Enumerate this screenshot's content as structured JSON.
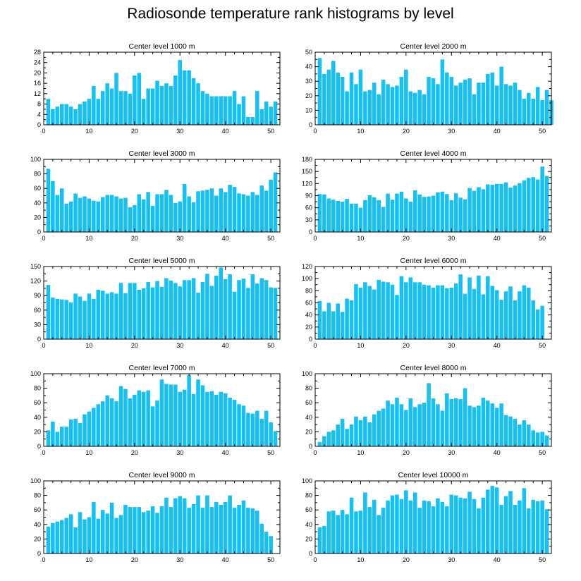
{
  "title": "Radiosonde temperature rank histograms by level",
  "colors": {
    "bar": "#16c0f3",
    "axis": "#000000"
  },
  "chart_data": [
    {
      "type": "bar",
      "title": "Center level 1000 m",
      "xlim": [
        0,
        52
      ],
      "ylim": [
        0,
        28
      ],
      "xticks": [
        0,
        10,
        20,
        30,
        40,
        50
      ],
      "yticks": [
        0,
        4,
        8,
        12,
        16,
        20,
        24,
        28
      ],
      "values": [
        10,
        6,
        7,
        8,
        8,
        7,
        6,
        8,
        9,
        10,
        15,
        10,
        13,
        16,
        14,
        20,
        13,
        13,
        12,
        19,
        20,
        10,
        14,
        14,
        17,
        15,
        16,
        15,
        19,
        25,
        21,
        21,
        18,
        16,
        13,
        12,
        11,
        11,
        11,
        11,
        11,
        13,
        8,
        11,
        3,
        3,
        13,
        6,
        9,
        7,
        9
      ]
    },
    {
      "type": "bar",
      "title": "Center level 2000 m",
      "xlim": [
        0,
        52
      ],
      "ylim": [
        0,
        50
      ],
      "xticks": [
        0,
        10,
        20,
        30,
        40,
        50
      ],
      "yticks": [
        0,
        10,
        20,
        30,
        40,
        50
      ],
      "values": [
        46,
        35,
        38,
        44,
        36,
        33,
        23,
        36,
        28,
        38,
        23,
        24,
        29,
        21,
        31,
        28,
        26,
        27,
        33,
        38,
        23,
        22,
        24,
        21,
        33,
        32,
        28,
        45,
        36,
        33,
        27,
        29,
        31,
        32,
        21,
        29,
        29,
        35,
        36,
        27,
        40,
        28,
        27,
        29,
        24,
        18,
        22,
        18,
        26,
        17,
        24,
        17
      ]
    },
    {
      "type": "bar",
      "title": "Center level 3000 m",
      "xlim": [
        0,
        52
      ],
      "ylim": [
        0,
        100
      ],
      "xticks": [
        0,
        10,
        20,
        30,
        40,
        50
      ],
      "yticks": [
        0,
        20,
        40,
        60,
        80,
        100
      ],
      "values": [
        87,
        70,
        51,
        60,
        39,
        42,
        53,
        47,
        49,
        46,
        43,
        42,
        48,
        51,
        51,
        49,
        46,
        47,
        34,
        37,
        52,
        45,
        55,
        36,
        52,
        52,
        58,
        51,
        40,
        42,
        66,
        49,
        41,
        56,
        57,
        58,
        60,
        50,
        60,
        55,
        65,
        62,
        53,
        52,
        50,
        55,
        51,
        64,
        57,
        72,
        82
      ]
    },
    {
      "type": "bar",
      "title": "Center level 4000 m",
      "xlim": [
        0,
        52
      ],
      "ylim": [
        0,
        180
      ],
      "xticks": [
        0,
        10,
        20,
        30,
        40,
        50
      ],
      "yticks": [
        0,
        30,
        60,
        90,
        120,
        150,
        180
      ],
      "values": [
        94,
        93,
        83,
        80,
        77,
        75,
        82,
        70,
        70,
        60,
        79,
        91,
        86,
        79,
        62,
        95,
        80,
        95,
        100,
        83,
        75,
        103,
        93,
        87,
        88,
        90,
        98,
        100,
        94,
        79,
        96,
        85,
        81,
        109,
        102,
        111,
        106,
        118,
        117,
        119,
        119,
        123,
        110,
        115,
        121,
        128,
        134,
        136,
        130,
        162,
        139
      ]
    },
    {
      "type": "bar",
      "title": "Center level 5000 m",
      "xlim": [
        0,
        52
      ],
      "ylim": [
        0,
        150
      ],
      "xticks": [
        0,
        10,
        20,
        30,
        40,
        50
      ],
      "yticks": [
        0,
        30,
        60,
        90,
        120,
        150
      ],
      "values": [
        112,
        86,
        83,
        82,
        81,
        76,
        94,
        88,
        79,
        94,
        83,
        102,
        100,
        94,
        97,
        94,
        116,
        95,
        116,
        116,
        102,
        105,
        118,
        107,
        120,
        108,
        126,
        121,
        116,
        109,
        122,
        122,
        126,
        96,
        118,
        135,
        110,
        131,
        148,
        124,
        134,
        98,
        122,
        125,
        106,
        134,
        115,
        126,
        122,
        107,
        106
      ]
    },
    {
      "type": "bar",
      "title": "Center level 6000 m",
      "xlim": [
        0,
        52
      ],
      "ylim": [
        0,
        120
      ],
      "xticks": [
        0,
        10,
        20,
        30,
        40,
        50
      ],
      "yticks": [
        0,
        20,
        40,
        60,
        80,
        100,
        120
      ],
      "values": [
        63,
        46,
        60,
        46,
        59,
        45,
        67,
        64,
        91,
        85,
        94,
        88,
        82,
        98,
        95,
        94,
        90,
        73,
        104,
        94,
        102,
        94,
        94,
        90,
        89,
        85,
        89,
        89,
        84,
        85,
        92,
        107,
        75,
        102,
        83,
        105,
        74,
        104,
        88,
        81,
        65,
        79,
        87,
        64,
        79,
        89,
        85,
        64,
        49,
        55
      ]
    },
    {
      "type": "bar",
      "title": "Center level 7000 m",
      "xlim": [
        0,
        52
      ],
      "ylim": [
        0,
        100
      ],
      "xticks": [
        0,
        10,
        20,
        30,
        40,
        50
      ],
      "yticks": [
        0,
        20,
        40,
        60,
        80,
        100
      ],
      "values": [
        22,
        34,
        20,
        27,
        27,
        37,
        38,
        32,
        44,
        48,
        53,
        58,
        62,
        70,
        66,
        62,
        83,
        79,
        66,
        71,
        77,
        75,
        77,
        55,
        63,
        92,
        86,
        85,
        85,
        75,
        78,
        98,
        72,
        92,
        84,
        75,
        76,
        71,
        75,
        73,
        67,
        64,
        58,
        56,
        46,
        45,
        49,
        38,
        49,
        33,
        21
      ]
    },
    {
      "type": "bar",
      "title": "Center level 8000 m",
      "xlim": [
        0,
        52
      ],
      "ylim": [
        0,
        100
      ],
      "xticks": [
        0,
        10,
        20,
        30,
        40,
        50
      ],
      "yticks": [
        0,
        20,
        40,
        60,
        80,
        100
      ],
      "values": [
        6,
        14,
        20,
        22,
        30,
        38,
        24,
        30,
        41,
        36,
        41,
        33,
        44,
        49,
        52,
        63,
        58,
        67,
        58,
        50,
        66,
        54,
        58,
        60,
        87,
        66,
        58,
        49,
        73,
        65,
        66,
        65,
        80,
        56,
        54,
        56,
        67,
        63,
        59,
        53,
        59,
        43,
        41,
        38,
        30,
        36,
        30,
        22,
        19,
        20,
        15
      ]
    },
    {
      "type": "bar",
      "title": "Center level 9000 m",
      "xlim": [
        0,
        52
      ],
      "ylim": [
        0,
        100
      ],
      "xticks": [
        0,
        10,
        20,
        30,
        40,
        50
      ],
      "yticks": [
        0,
        20,
        40,
        60,
        80,
        100
      ],
      "values": [
        37,
        42,
        44,
        46,
        49,
        54,
        36,
        57,
        47,
        50,
        71,
        48,
        60,
        55,
        70,
        49,
        53,
        67,
        64,
        64,
        64,
        57,
        59,
        65,
        56,
        65,
        77,
        64,
        76,
        79,
        76,
        63,
        68,
        80,
        63,
        80,
        64,
        71,
        67,
        71,
        80,
        63,
        67,
        73,
        63,
        62,
        59,
        41,
        30,
        24
      ]
    },
    {
      "type": "bar",
      "title": "Center level 10000 m",
      "xlim": [
        0,
        52
      ],
      "ylim": [
        0,
        100
      ],
      "xticks": [
        0,
        10,
        20,
        30,
        40,
        50
      ],
      "yticks": [
        0,
        20,
        40,
        60,
        80,
        100
      ],
      "values": [
        36,
        38,
        58,
        59,
        53,
        60,
        54,
        77,
        58,
        59,
        84,
        64,
        74,
        53,
        63,
        73,
        80,
        81,
        75,
        87,
        73,
        84,
        63,
        73,
        72,
        65,
        76,
        71,
        65,
        81,
        80,
        77,
        76,
        85,
        75,
        62,
        77,
        88,
        93,
        91,
        67,
        79,
        86,
        67,
        73,
        90,
        62,
        74,
        72,
        73,
        61
      ]
    }
  ]
}
